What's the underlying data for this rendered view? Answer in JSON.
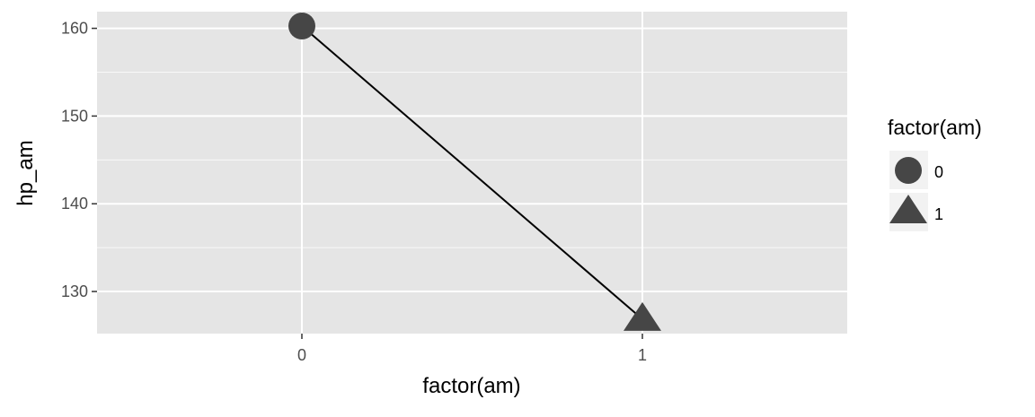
{
  "chart_data": {
    "type": "line",
    "title": "",
    "xlabel": "factor(am)",
    "ylabel": "hp_am",
    "categories": [
      "0",
      "1"
    ],
    "series": [
      {
        "x": [
          "0",
          "1"
        ],
        "values": [
          160.26,
          126.85
        ]
      }
    ],
    "ylim": [
      125.2,
      161.9
    ],
    "y_ticks": [
      130,
      140,
      150,
      160
    ],
    "grid": true,
    "legend": {
      "title": "factor(am)",
      "position": "right",
      "entries": [
        {
          "label": "0",
          "shape": "circle"
        },
        {
          "label": "1",
          "shape": "triangle"
        }
      ]
    },
    "colors": {
      "panel": "#e5e5e5",
      "grid": "#ffffff",
      "point": "#464646",
      "line": "#000000",
      "axis_text": "#4d4d4d",
      "text": "#000000"
    }
  }
}
